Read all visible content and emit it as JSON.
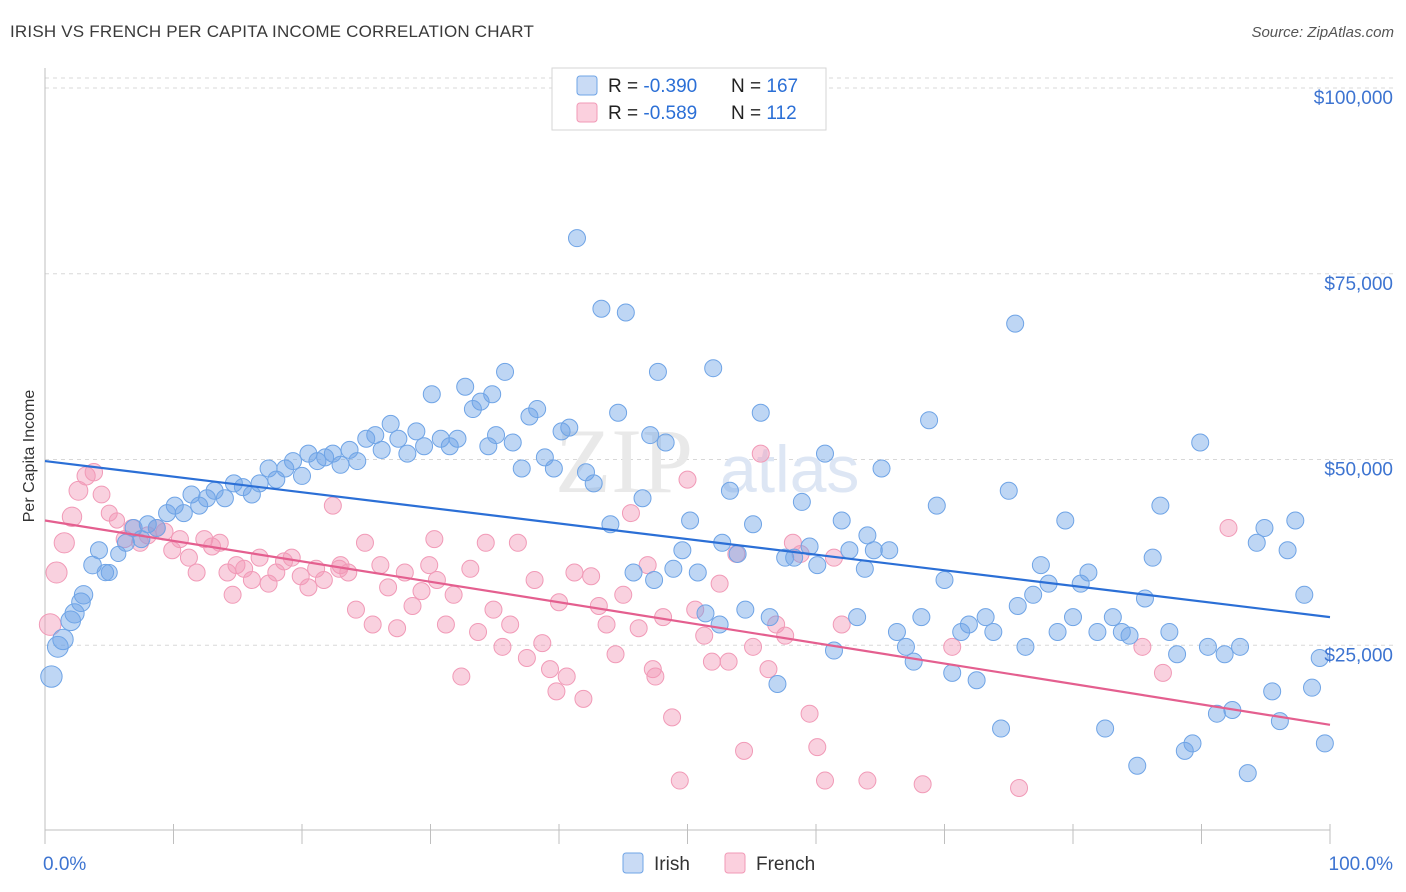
{
  "title": "IRISH VS FRENCH PER CAPITA INCOME CORRELATION CHART",
  "source": "Source: ZipAtlas.com",
  "watermark": "ZIPatlas",
  "colors": {
    "irish": "#6fa4e6",
    "irish_line": "#2b6fd6",
    "french": "#f19ab7",
    "french_line": "#e45f8f",
    "axis_text": "#3d74d1",
    "grid": "#d8d8d8"
  },
  "legend": {
    "rows": [
      {
        "r_label": "R = ",
        "r_value": "-0.390",
        "n_label": "N = ",
        "n_value": "167"
      },
      {
        "r_label": "R = ",
        "r_value": "-0.589",
        "n_label": "N = ",
        "n_value": "112"
      }
    ]
  },
  "chart_data": {
    "type": "scatter",
    "ylabel": "Per Capita Income",
    "xlabel": "",
    "xlim": [
      0,
      100
    ],
    "ylim": [
      0,
      105000
    ],
    "x_tick_labels": [
      "0.0%",
      "100.0%"
    ],
    "y_ticks": [
      25000,
      50000,
      75000,
      100000
    ],
    "y_tick_labels": [
      "$25,000",
      "$50,000",
      "$75,000",
      "$100,000"
    ],
    "grid": true,
    "legend_position": "bottom-center",
    "series": [
      {
        "name": "Irish",
        "trend": {
          "x": [
            0,
            100
          ],
          "y": [
            51000,
            30000
          ]
        },
        "points": [
          [
            0.5,
            22000
          ],
          [
            1.0,
            26000
          ],
          [
            1.4,
            27000
          ],
          [
            2.0,
            29500
          ],
          [
            2.3,
            30500
          ],
          [
            2.8,
            32000
          ],
          [
            3.0,
            33000
          ],
          [
            3.7,
            37000
          ],
          [
            4.2,
            39000
          ],
          [
            4.7,
            36000
          ],
          [
            5.0,
            36000
          ],
          [
            5.7,
            38500
          ],
          [
            6.3,
            40000
          ],
          [
            6.9,
            42000
          ],
          [
            7.5,
            40500
          ],
          [
            8.0,
            42500
          ],
          [
            8.7,
            42000
          ],
          [
            9.5,
            44000
          ],
          [
            10.1,
            45000
          ],
          [
            10.8,
            44000
          ],
          [
            11.4,
            46500
          ],
          [
            12.0,
            45000
          ],
          [
            12.6,
            46000
          ],
          [
            13.2,
            47000
          ],
          [
            14.0,
            46000
          ],
          [
            14.7,
            48000
          ],
          [
            15.4,
            47500
          ],
          [
            16.1,
            46500
          ],
          [
            16.7,
            48000
          ],
          [
            17.4,
            50000
          ],
          [
            18.0,
            48500
          ],
          [
            18.7,
            50000
          ],
          [
            19.3,
            51000
          ],
          [
            20.0,
            49000
          ],
          [
            20.5,
            52000
          ],
          [
            21.2,
            51000
          ],
          [
            21.8,
            51500
          ],
          [
            22.4,
            52000
          ],
          [
            23.0,
            50500
          ],
          [
            23.7,
            52500
          ],
          [
            24.3,
            51000
          ],
          [
            25.0,
            54000
          ],
          [
            25.7,
            54500
          ],
          [
            26.2,
            52500
          ],
          [
            26.9,
            56000
          ],
          [
            27.5,
            54000
          ],
          [
            28.2,
            52000
          ],
          [
            28.9,
            55000
          ],
          [
            29.5,
            53000
          ],
          [
            30.1,
            60000
          ],
          [
            30.8,
            54000
          ],
          [
            31.5,
            53000
          ],
          [
            32.1,
            54000
          ],
          [
            32.7,
            61000
          ],
          [
            33.3,
            58000
          ],
          [
            33.9,
            59000
          ],
          [
            34.5,
            53000
          ],
          [
            35.1,
            54500
          ],
          [
            35.8,
            63000
          ],
          [
            36.4,
            53500
          ],
          [
            37.1,
            50000
          ],
          [
            37.7,
            57000
          ],
          [
            38.3,
            58000
          ],
          [
            38.9,
            51500
          ],
          [
            39.6,
            50000
          ],
          [
            40.2,
            55000
          ],
          [
            40.8,
            55500
          ],
          [
            41.4,
            81000
          ],
          [
            42.1,
            49500
          ],
          [
            42.7,
            48000
          ],
          [
            43.3,
            71500
          ],
          [
            44.0,
            42500
          ],
          [
            44.6,
            57500
          ],
          [
            45.2,
            71000
          ],
          [
            45.8,
            36000
          ],
          [
            46.5,
            46000
          ],
          [
            47.1,
            54500
          ],
          [
            47.7,
            63000
          ],
          [
            48.3,
            53500
          ],
          [
            48.9,
            36500
          ],
          [
            49.6,
            39000
          ],
          [
            50.2,
            43000
          ],
          [
            50.8,
            36000
          ],
          [
            51.4,
            30500
          ],
          [
            52.0,
            63500
          ],
          [
            52.7,
            40000
          ],
          [
            53.3,
            47000
          ],
          [
            53.9,
            38500
          ],
          [
            54.5,
            31000
          ],
          [
            55.1,
            42500
          ],
          [
            55.7,
            57500
          ],
          [
            56.4,
            30000
          ],
          [
            57.0,
            21000
          ],
          [
            57.6,
            38000
          ],
          [
            58.3,
            38000
          ],
          [
            58.9,
            45500
          ],
          [
            59.5,
            39500
          ],
          [
            60.1,
            37000
          ],
          [
            60.7,
            52000
          ],
          [
            61.4,
            25500
          ],
          [
            62.0,
            43000
          ],
          [
            62.6,
            39000
          ],
          [
            63.2,
            30000
          ],
          [
            63.8,
            36500
          ],
          [
            64.5,
            39000
          ],
          [
            65.1,
            50000
          ],
          [
            65.7,
            39000
          ],
          [
            66.3,
            28000
          ],
          [
            67.0,
            26000
          ],
          [
            67.6,
            24000
          ],
          [
            68.2,
            30000
          ],
          [
            68.8,
            56500
          ],
          [
            69.4,
            45000
          ],
          [
            70.0,
            35000
          ],
          [
            70.6,
            22500
          ],
          [
            71.3,
            28000
          ],
          [
            71.9,
            29000
          ],
          [
            72.5,
            21500
          ],
          [
            73.2,
            30000
          ],
          [
            73.8,
            28000
          ],
          [
            74.4,
            15000
          ],
          [
            75.0,
            47000
          ],
          [
            75.7,
            31500
          ],
          [
            76.3,
            26000
          ],
          [
            76.9,
            33000
          ],
          [
            77.5,
            37000
          ],
          [
            78.1,
            34500
          ],
          [
            78.8,
            28000
          ],
          [
            79.4,
            43000
          ],
          [
            80.0,
            30000
          ],
          [
            80.6,
            34500
          ],
          [
            81.2,
            36000
          ],
          [
            81.9,
            28000
          ],
          [
            82.5,
            15000
          ],
          [
            83.1,
            30000
          ],
          [
            83.8,
            28000
          ],
          [
            84.4,
            27500
          ],
          [
            85.0,
            10000
          ],
          [
            85.6,
            32500
          ],
          [
            86.2,
            38000
          ],
          [
            86.8,
            45000
          ],
          [
            87.5,
            28000
          ],
          [
            88.1,
            25000
          ],
          [
            88.7,
            12000
          ],
          [
            89.3,
            13000
          ],
          [
            89.9,
            53500
          ],
          [
            90.5,
            26000
          ],
          [
            91.2,
            17000
          ],
          [
            91.8,
            25000
          ],
          [
            92.4,
            17500
          ],
          [
            93.0,
            26000
          ],
          [
            93.6,
            9000
          ],
          [
            94.3,
            40000
          ],
          [
            94.9,
            42000
          ],
          [
            95.5,
            20000
          ],
          [
            96.1,
            16000
          ],
          [
            96.7,
            39000
          ],
          [
            97.3,
            43000
          ],
          [
            98.0,
            33000
          ],
          [
            98.6,
            20500
          ],
          [
            99.2,
            24500
          ],
          [
            99.6,
            13000
          ],
          [
            75.5,
            69500
          ],
          [
            64.0,
            41000
          ],
          [
            52.5,
            29000
          ],
          [
            47.4,
            35000
          ],
          [
            34.8,
            60000
          ]
        ]
      },
      {
        "name": "French",
        "trend": {
          "x": [
            0,
            100
          ],
          "y": [
            43000,
            15500
          ]
        },
        "points": [
          [
            0.4,
            29000
          ],
          [
            0.9,
            36000
          ],
          [
            1.5,
            40000
          ],
          [
            2.1,
            43500
          ],
          [
            2.6,
            47000
          ],
          [
            3.2,
            49000
          ],
          [
            3.8,
            49500
          ],
          [
            4.4,
            46500
          ],
          [
            5.0,
            44000
          ],
          [
            5.6,
            43000
          ],
          [
            6.2,
            40500
          ],
          [
            6.8,
            42000
          ],
          [
            7.4,
            40000
          ],
          [
            8.0,
            41000
          ],
          [
            8.7,
            42000
          ],
          [
            9.3,
            41500
          ],
          [
            9.9,
            39000
          ],
          [
            10.5,
            40500
          ],
          [
            11.2,
            38000
          ],
          [
            11.8,
            36000
          ],
          [
            12.4,
            40500
          ],
          [
            13.0,
            39500
          ],
          [
            13.6,
            40000
          ],
          [
            14.2,
            36000
          ],
          [
            14.9,
            37000
          ],
          [
            15.5,
            36500
          ],
          [
            16.1,
            35000
          ],
          [
            16.7,
            38000
          ],
          [
            17.4,
            34500
          ],
          [
            18.0,
            36000
          ],
          [
            18.6,
            37500
          ],
          [
            19.2,
            38000
          ],
          [
            19.9,
            35500
          ],
          [
            20.5,
            34000
          ],
          [
            21.1,
            36500
          ],
          [
            21.7,
            35000
          ],
          [
            22.4,
            45000
          ],
          [
            23.0,
            37000
          ],
          [
            23.6,
            36000
          ],
          [
            24.2,
            31000
          ],
          [
            24.9,
            40000
          ],
          [
            25.5,
            29000
          ],
          [
            26.1,
            37000
          ],
          [
            26.7,
            34000
          ],
          [
            27.4,
            28500
          ],
          [
            28.0,
            36000
          ],
          [
            28.6,
            31500
          ],
          [
            29.3,
            33500
          ],
          [
            29.9,
            37000
          ],
          [
            30.5,
            35000
          ],
          [
            31.2,
            29000
          ],
          [
            31.8,
            33000
          ],
          [
            32.4,
            22000
          ],
          [
            33.1,
            36500
          ],
          [
            33.7,
            28000
          ],
          [
            34.3,
            40000
          ],
          [
            34.9,
            31000
          ],
          [
            35.6,
            26000
          ],
          [
            36.2,
            29000
          ],
          [
            36.8,
            40000
          ],
          [
            37.5,
            24500
          ],
          [
            38.1,
            35000
          ],
          [
            38.7,
            26500
          ],
          [
            39.3,
            23000
          ],
          [
            40.0,
            32000
          ],
          [
            40.6,
            22000
          ],
          [
            41.2,
            36000
          ],
          [
            41.9,
            19000
          ],
          [
            42.5,
            35500
          ],
          [
            43.1,
            31500
          ],
          [
            43.7,
            29000
          ],
          [
            44.4,
            25000
          ],
          [
            45.0,
            33000
          ],
          [
            45.6,
            44000
          ],
          [
            46.2,
            28500
          ],
          [
            46.9,
            37000
          ],
          [
            47.5,
            22000
          ],
          [
            48.1,
            30000
          ],
          [
            48.8,
            16500
          ],
          [
            49.4,
            8000
          ],
          [
            50.0,
            48500
          ],
          [
            50.6,
            31000
          ],
          [
            51.3,
            27500
          ],
          [
            51.9,
            24000
          ],
          [
            52.5,
            34500
          ],
          [
            53.2,
            24000
          ],
          [
            53.8,
            38500
          ],
          [
            54.4,
            12000
          ],
          [
            55.1,
            26000
          ],
          [
            55.7,
            52000
          ],
          [
            56.3,
            23000
          ],
          [
            56.9,
            29000
          ],
          [
            57.6,
            27500
          ],
          [
            58.2,
            40000
          ],
          [
            58.8,
            38500
          ],
          [
            59.5,
            17000
          ],
          [
            60.1,
            12500
          ],
          [
            60.7,
            8000
          ],
          [
            61.4,
            38000
          ],
          [
            62.0,
            29000
          ],
          [
            64.0,
            8000
          ],
          [
            68.3,
            7500
          ],
          [
            70.6,
            26000
          ],
          [
            75.8,
            7000
          ],
          [
            85.4,
            26000
          ],
          [
            87.0,
            22500
          ],
          [
            92.1,
            42000
          ],
          [
            47.3,
            23000
          ],
          [
            39.8,
            20000
          ],
          [
            30.3,
            40500
          ],
          [
            22.9,
            36500
          ],
          [
            14.6,
            33000
          ]
        ]
      }
    ]
  }
}
